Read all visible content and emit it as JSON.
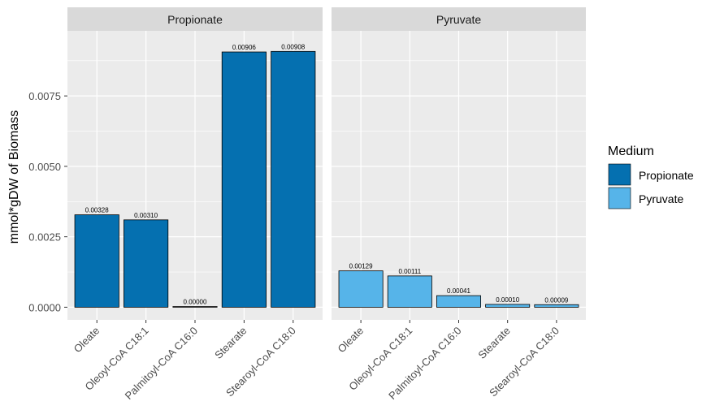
{
  "chart_data": {
    "type": "bar",
    "ylabel": "mmol*gDW of Biomass",
    "xlabel": "",
    "ylim": [
      -0.00045,
      0.00981
    ],
    "y_ticks": [
      0.0,
      0.0025,
      0.005,
      0.0075
    ],
    "y_tick_labels": [
      "0.0000",
      "0.0025",
      "0.0050",
      "0.0075"
    ],
    "grid": true,
    "legend_position": "right",
    "legend": {
      "title": "Medium",
      "items": [
        {
          "label": "Propionate",
          "color": "#0570b0"
        },
        {
          "label": "Pyruvate",
          "color": "#56b4e9"
        }
      ]
    },
    "categories": [
      "Oleate",
      "Oleoyl-CoA C18:1",
      "Palmitoyl-CoA C16:0",
      "Stearate",
      "Stearoyl-CoA C18:0"
    ],
    "panels": [
      {
        "facet": "Propionate",
        "color": "#0570b0",
        "values": [
          0.00328,
          0.0031,
          0.0,
          0.00906,
          0.00908
        ],
        "labels": [
          "0.00328",
          "0.00310",
          "0.00000",
          "0.00906",
          "0.00908"
        ]
      },
      {
        "facet": "Pyruvate",
        "color": "#56b4e9",
        "values": [
          0.00129,
          0.00111,
          0.00041,
          0.0001,
          9e-05
        ],
        "labels": [
          "0.00129",
          "0.00111",
          "0.00041",
          "0.00010",
          "0.00009"
        ]
      }
    ]
  }
}
